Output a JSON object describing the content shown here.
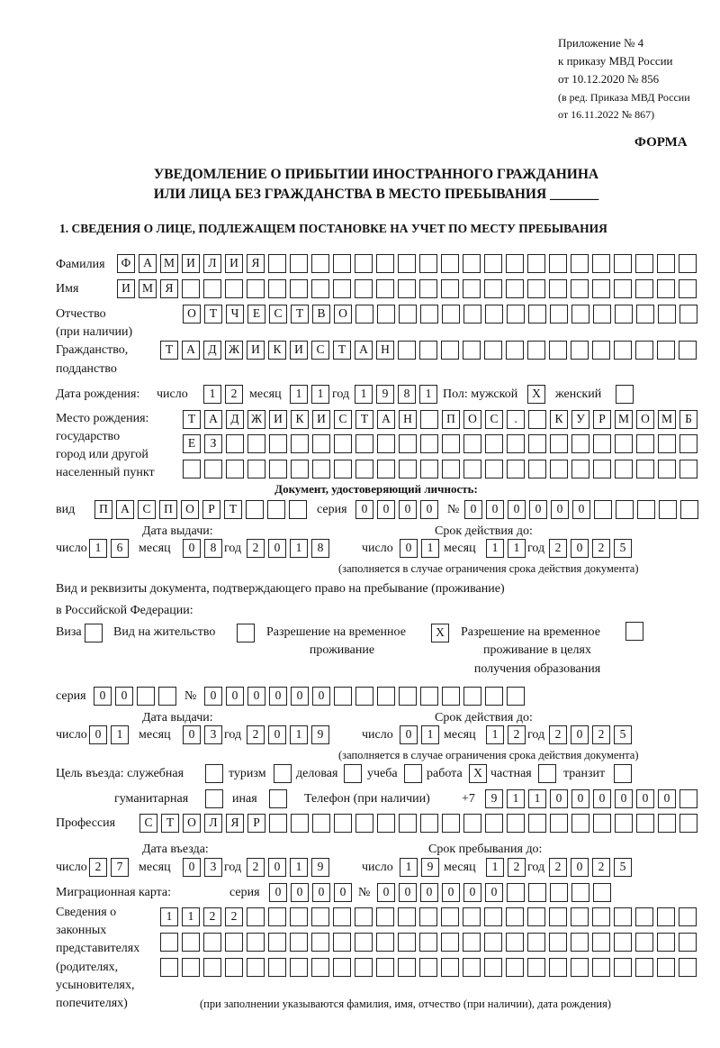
{
  "header": {
    "line1": "Приложение № 4",
    "line2": "к приказу МВД России",
    "line3": "от 10.12.2020 № 856",
    "line4": "(в ред. Приказа МВД России",
    "line5": "от 16.11.2022 № 867)",
    "form_label": "ФОРМА",
    "title1": "УВЕДОМЛЕНИЕ О ПРИБЫТИИ ИНОСТРАННОГО ГРАЖДАНИНА",
    "title2": "ИЛИ ЛИЦА БЕЗ ГРАЖДАНСТВА В МЕСТО ПРЕБЫВАНИЯ _______"
  },
  "section1": {
    "heading": "1. СВЕДЕНИЯ О ЛИЦЕ, ПОДЛЕЖАЩЕМ ПОСТАНОВКЕ НА УЧЕТ ПО МЕСТУ ПРЕБЫВАНИЯ"
  },
  "labels": {
    "surname": "Фамилия",
    "name": "Имя",
    "patronymic1": "Отчество",
    "patronymic2": "(при наличии)",
    "citizenship1": "Гражданство,",
    "citizenship2": "подданство",
    "birth_date": "Дата рождения:",
    "day": "число",
    "month": "месяц",
    "year": "год",
    "sex": "Пол: мужской",
    "female": "женский",
    "birthplace1": "Место рождения:",
    "birthplace2": "государство",
    "birthplace3": "город или другой",
    "birthplace4": "населенный пункт",
    "id_doc": "Документ, удостоверяющий личность:",
    "kind": "вид",
    "series": "серия",
    "number": "№",
    "issue_date": "Дата выдачи:",
    "valid_until": "Срок действия до:",
    "validity_note": "(заполняется в случае ограничения срока действия документа)",
    "right_doc1": "Вид и реквизиты документа, подтверждающего право на пребывание (проживание)",
    "right_doc2": "в Российской Федерации:",
    "visa": "Виза",
    "residence": "Вид на жительство",
    "trp1": "Разрешение на временное",
    "trp2": "проживание",
    "trp_edu1": "Разрешение на временное",
    "trp_edu2": "проживание в целях",
    "trp_edu3": "получения образования",
    "purpose": "Цель въезда: служебная",
    "tourism": "туризм",
    "business": "деловая",
    "study": "учеба",
    "work": "работа",
    "private": "частная",
    "transit": "транзит",
    "humanitarian": "гуманитарная",
    "other": "иная",
    "phone": "Телефон (при наличии)",
    "phone_prefix": "+7",
    "profession": "Профессия",
    "entry_date": "Дата въезда:",
    "stay_until": "Срок пребывания до:",
    "migration_card": "Миграционная карта:",
    "reps1": "Сведения о",
    "reps2": "законных",
    "reps3": "представителях",
    "reps4": "(родителях,",
    "reps5": "усыновителях,",
    "reps6": "попечителях)",
    "reps_note": "(при заполнении указываются фамилия, имя, отчество (при наличии), дата рождения)"
  },
  "person": {
    "surname": "ФАМИЛИЯ",
    "name": "ИМЯ",
    "patronymic": "ОТЧЕСТВО",
    "citizenship": "ТАДЖИКИСТАН",
    "birth_day": "12",
    "birth_month": "11",
    "birth_year": "1981",
    "male": "X",
    "female": "",
    "birthplace_rows": [
      "ТАДЖИКИСТАН ПОС. КУРМОМБ",
      "ЕЗ",
      ""
    ]
  },
  "id_document": {
    "kind": "ПАСПОРТ",
    "series": "0000",
    "number": "000000",
    "issue_day": "16",
    "issue_month": "08",
    "issue_year": "2018",
    "valid_day": "01",
    "valid_month": "11",
    "valid_year": "2025"
  },
  "right_document": {
    "visa": "",
    "residence": "",
    "trp": "X",
    "trp_edu": "",
    "series": "00",
    "number": "000000",
    "issue_day": "01",
    "issue_month": "03",
    "issue_year": "2019",
    "valid_day": "01",
    "valid_month": "12",
    "valid_year": "2025"
  },
  "purpose": {
    "official": "",
    "tourism": "",
    "business": "",
    "study": "",
    "work": "X",
    "private": "",
    "transit": "",
    "humanitarian": "",
    "other": ""
  },
  "phone": "911000000",
  "profession": "СТОЛЯР",
  "entry": {
    "entry_day": "27",
    "entry_month": "03",
    "entry_year": "2019",
    "stay_day": "19",
    "stay_month": "12",
    "stay_year": "2025"
  },
  "migration_card": {
    "series": "0000",
    "number": "000000"
  },
  "representatives_rows": [
    "1122",
    "",
    ""
  ]
}
